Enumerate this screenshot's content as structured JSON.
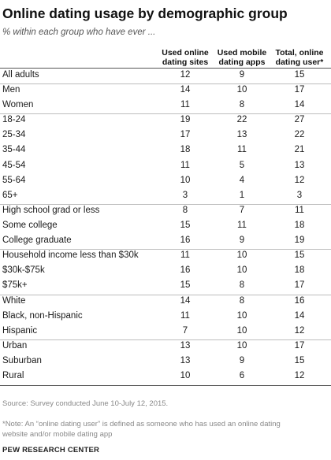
{
  "chart_data": {
    "type": "table",
    "title": "Online dating usage by demographic group",
    "subtitle": "% within each group who have ever ...",
    "columns": [
      [
        "Used online",
        "dating sites"
      ],
      [
        "Used mobile",
        "dating apps"
      ],
      [
        "Total, online",
        "dating user*"
      ]
    ],
    "groups": [
      {
        "rows": [
          {
            "label": "All adults",
            "values": [
              12,
              9,
              15
            ]
          }
        ]
      },
      {
        "rows": [
          {
            "label": "Men",
            "values": [
              14,
              10,
              17
            ]
          },
          {
            "label": "Women",
            "values": [
              11,
              8,
              14
            ]
          }
        ]
      },
      {
        "rows": [
          {
            "label": "18-24",
            "values": [
              19,
              22,
              27
            ]
          },
          {
            "label": "25-34",
            "values": [
              17,
              13,
              22
            ]
          },
          {
            "label": "35-44",
            "values": [
              18,
              11,
              21
            ]
          },
          {
            "label": "45-54",
            "values": [
              11,
              5,
              13
            ]
          },
          {
            "label": "55-64",
            "values": [
              10,
              4,
              12
            ]
          },
          {
            "label": "65+",
            "values": [
              3,
              1,
              3
            ]
          }
        ]
      },
      {
        "rows": [
          {
            "label": "High school grad or less",
            "values": [
              8,
              7,
              11
            ]
          },
          {
            "label": "Some college",
            "values": [
              15,
              11,
              18
            ]
          },
          {
            "label": "College graduate",
            "values": [
              16,
              9,
              19
            ]
          }
        ]
      },
      {
        "rows": [
          {
            "label": "Household income less than $30k",
            "values": [
              11,
              10,
              15
            ]
          },
          {
            "label": "$30k-$75k",
            "values": [
              16,
              10,
              18
            ]
          },
          {
            "label": "$75k+",
            "values": [
              15,
              8,
              17
            ]
          }
        ]
      },
      {
        "rows": [
          {
            "label": "White",
            "values": [
              14,
              8,
              16
            ]
          },
          {
            "label": "Black, non-Hispanic",
            "values": [
              11,
              10,
              14
            ]
          },
          {
            "label": "Hispanic",
            "values": [
              7,
              10,
              12
            ]
          }
        ]
      },
      {
        "rows": [
          {
            "label": "Urban",
            "values": [
              13,
              10,
              17
            ]
          },
          {
            "label": "Suburban",
            "values": [
              13,
              9,
              15
            ]
          },
          {
            "label": "Rural",
            "values": [
              10,
              6,
              12
            ]
          }
        ]
      }
    ]
  },
  "footer": {
    "source": "Source: Survey conducted June 10-July 12, 2015.",
    "note_lines": [
      "*Note: An “online dating user” is defined as someone who has used an online dating",
      "website and/or mobile dating app"
    ],
    "credit": "PEW RESEARCH CENTER"
  },
  "colors": {
    "text": "#1a1a1a",
    "muted": "#888888",
    "rule": "#bdbdbd"
  }
}
